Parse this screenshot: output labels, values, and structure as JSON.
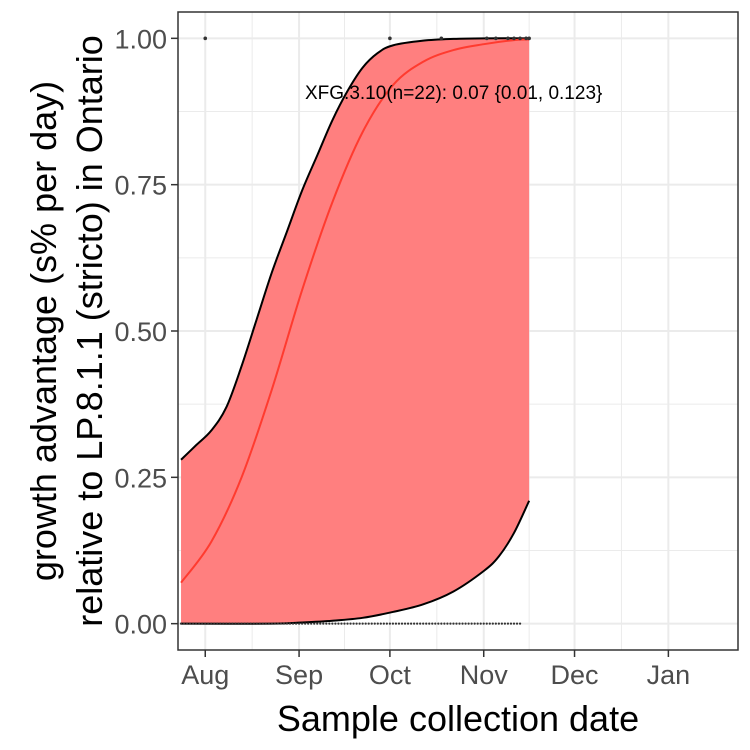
{
  "chart_data": {
    "type": "line",
    "xlabel": "Sample collection date",
    "ylabel_lines": [
      "growth advantage (s% per day)",
      "relative to LP.8.1.1 (stricto) in Ontario"
    ],
    "x_axis_type": "date",
    "xlim": [
      "2025-07-23",
      "2026-01-24"
    ],
    "ylim": [
      -0.045,
      1.045
    ],
    "x_ticks": [
      {
        "date": "2025-08-01",
        "label": "Aug"
      },
      {
        "date": "2025-09-01",
        "label": "Sep"
      },
      {
        "date": "2025-10-01",
        "label": "Oct"
      },
      {
        "date": "2025-11-01",
        "label": "Nov"
      },
      {
        "date": "2025-12-01",
        "label": "Dec"
      },
      {
        "date": "2026-01-01",
        "label": "Jan"
      }
    ],
    "y_ticks": [
      {
        "value": 0.0,
        "label": "0.00"
      },
      {
        "value": 0.25,
        "label": "0.25"
      },
      {
        "value": 0.5,
        "label": "0.50"
      },
      {
        "value": 0.75,
        "label": "0.75"
      },
      {
        "value": 1.0,
        "label": "1.00"
      }
    ],
    "grid": true,
    "legend": "none",
    "annotation": "XFG.3.10(n=22): 0.07 {0.01, 0.123}",
    "colors": {
      "fit_line": "#ff3b2f",
      "ribbon": "#ff7f7f",
      "ribbon_edge": "#000000",
      "points": "#333333",
      "grid": "#ebebeb",
      "panel_border": "#333333"
    },
    "fit": [
      {
        "x": "2025-07-24",
        "y": 0.07
      },
      {
        "x": "2025-08-03",
        "y": 0.14
      },
      {
        "x": "2025-08-13",
        "y": 0.25
      },
      {
        "x": "2025-08-23",
        "y": 0.4
      },
      {
        "x": "2025-09-02",
        "y": 0.57
      },
      {
        "x": "2025-09-12",
        "y": 0.72
      },
      {
        "x": "2025-09-22",
        "y": 0.84
      },
      {
        "x": "2025-10-02",
        "y": 0.92
      },
      {
        "x": "2025-10-12",
        "y": 0.96
      },
      {
        "x": "2025-10-22",
        "y": 0.98
      },
      {
        "x": "2025-11-01",
        "y": 0.99
      },
      {
        "x": "2025-11-11",
        "y": 0.997
      },
      {
        "x": "2025-11-16",
        "y": 0.998
      }
    ],
    "ci_upper": [
      {
        "x": "2025-07-24",
        "y": 0.28
      },
      {
        "x": "2025-07-29",
        "y": 0.305
      },
      {
        "x": "2025-08-03",
        "y": 0.33
      },
      {
        "x": "2025-08-08",
        "y": 0.37
      },
      {
        "x": "2025-08-13",
        "y": 0.44
      },
      {
        "x": "2025-08-18",
        "y": 0.52
      },
      {
        "x": "2025-08-23",
        "y": 0.6
      },
      {
        "x": "2025-08-28",
        "y": 0.67
      },
      {
        "x": "2025-09-02",
        "y": 0.74
      },
      {
        "x": "2025-09-07",
        "y": 0.8
      },
      {
        "x": "2025-09-12",
        "y": 0.86
      },
      {
        "x": "2025-09-17",
        "y": 0.91
      },
      {
        "x": "2025-09-22",
        "y": 0.95
      },
      {
        "x": "2025-09-27",
        "y": 0.975
      },
      {
        "x": "2025-10-02",
        "y": 0.988
      },
      {
        "x": "2025-10-12",
        "y": 0.996
      },
      {
        "x": "2025-10-22",
        "y": 0.999
      },
      {
        "x": "2025-11-01",
        "y": 1.0
      },
      {
        "x": "2025-11-16",
        "y": 1.0
      }
    ],
    "ci_lower": [
      {
        "x": "2025-07-24",
        "y": 0.0
      },
      {
        "x": "2025-08-23",
        "y": 0.0
      },
      {
        "x": "2025-09-02",
        "y": 0.002
      },
      {
        "x": "2025-09-12",
        "y": 0.005
      },
      {
        "x": "2025-09-22",
        "y": 0.01
      },
      {
        "x": "2025-10-02",
        "y": 0.02
      },
      {
        "x": "2025-10-12",
        "y": 0.033
      },
      {
        "x": "2025-10-22",
        "y": 0.055
      },
      {
        "x": "2025-11-01",
        "y": 0.09
      },
      {
        "x": "2025-11-06",
        "y": 0.115
      },
      {
        "x": "2025-11-11",
        "y": 0.155
      },
      {
        "x": "2025-11-16",
        "y": 0.21
      }
    ],
    "observed_top": [
      {
        "x": "2025-08-01",
        "y": 1.0
      },
      {
        "x": "2025-10-01",
        "y": 1.0
      },
      {
        "x": "2025-10-18",
        "y": 1.0
      },
      {
        "x": "2025-11-02",
        "y": 1.0
      },
      {
        "x": "2025-11-05",
        "y": 1.0
      },
      {
        "x": "2025-11-09",
        "y": 1.0
      },
      {
        "x": "2025-11-11",
        "y": 1.0
      },
      {
        "x": "2025-11-13",
        "y": 1.0
      },
      {
        "x": "2025-11-15",
        "y": 1.0
      },
      {
        "x": "2025-11-16",
        "y": 1.0
      }
    ],
    "observed_zero_range": [
      "2025-07-24",
      "2025-11-13"
    ]
  }
}
